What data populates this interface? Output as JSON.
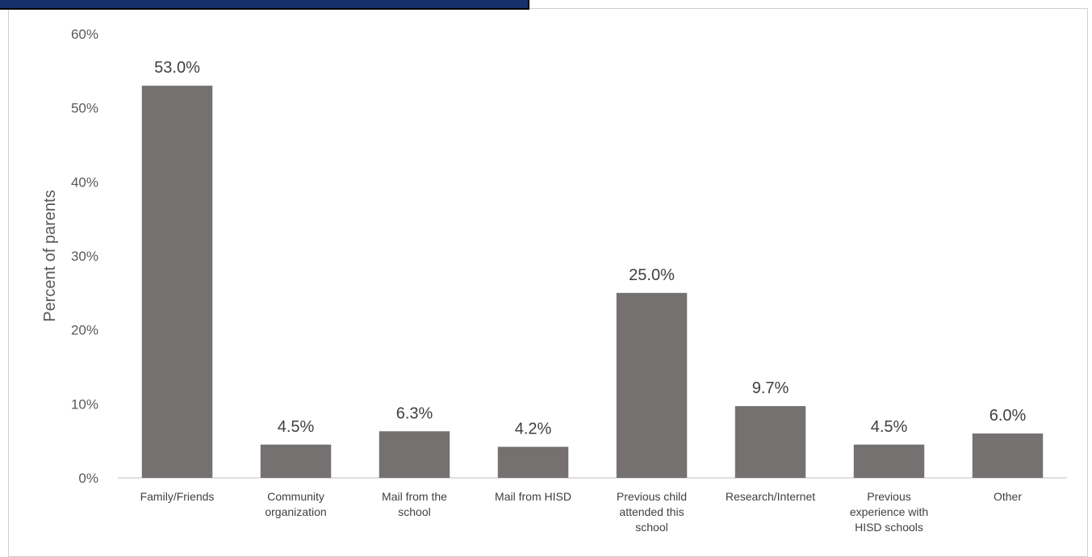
{
  "chart_data": {
    "type": "bar",
    "title": "",
    "xlabel": "",
    "ylabel": "Percent of parents",
    "ylim": [
      0,
      60
    ],
    "yticks": [
      "0%",
      "10%",
      "20%",
      "30%",
      "40%",
      "50%",
      "60%"
    ],
    "grid": false,
    "legend": "none",
    "bar_color": "#767171",
    "header_color": "#16306b",
    "categories": [
      [
        "Family/Friends"
      ],
      [
        "Community",
        "organization"
      ],
      [
        "Mail from the",
        "school"
      ],
      [
        "Mail from HISD"
      ],
      [
        "Previous child",
        "attended this",
        "school"
      ],
      [
        "Research/Internet"
      ],
      [
        "Previous",
        "experience with",
        "HISD schools"
      ],
      [
        "Other"
      ]
    ],
    "values": [
      53.0,
      4.5,
      6.3,
      4.2,
      25.0,
      9.7,
      4.5,
      6.0
    ],
    "data_labels": [
      "53.0%",
      "4.5%",
      "6.3%",
      "4.2%",
      "25.0%",
      "9.7%",
      "4.5%",
      "6.0%"
    ]
  }
}
